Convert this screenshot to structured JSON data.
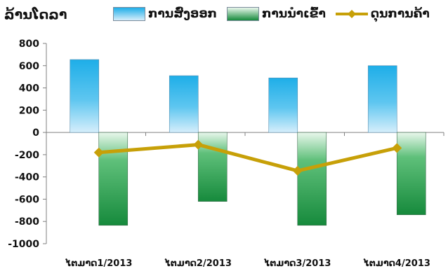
{
  "unit_label": "ລ້ານໂດລາ",
  "legend": [
    {
      "key": "exports",
      "label": "ການສົ່ງອອກ",
      "icon": "bar-swatch-blue"
    },
    {
      "key": "imports",
      "label": "ການນຳເຂົ້າ",
      "icon": "bar-swatch-green"
    },
    {
      "key": "balance",
      "label": "ດຸນການຄ້າ",
      "icon": "line-diamond-swatch-gold"
    }
  ],
  "colors": {
    "exports_top": "#1eaee8",
    "exports_bottom": "#d6eefb",
    "imports_top": "#e9f7ec",
    "imports_bottom": "#168a3c",
    "balance_line": "#c7a008",
    "axis": "#7f7f7f"
  },
  "chart_data": {
    "type": "bar",
    "categories": [
      "ໄຕມາດ1/2013",
      "ໄຕມາດ2/2013",
      "ໄຕມາດ3/2013",
      "ໄຕມາດ4/2013"
    ],
    "series": [
      {
        "name": "ການສົ່ງອອກ",
        "type": "bar",
        "values": [
          655,
          510,
          490,
          600
        ]
      },
      {
        "name": "ການນຳເຂົ້າ",
        "type": "bar",
        "values": [
          -835,
          -620,
          -835,
          -740
        ]
      },
      {
        "name": "ດຸນການຄ້າ",
        "type": "line",
        "values": [
          -180,
          -110,
          -345,
          -140
        ]
      }
    ],
    "ylim": [
      -1000,
      800
    ],
    "yticks": [
      800,
      600,
      400,
      200,
      0,
      -200,
      -400,
      -600,
      -800,
      -1000
    ],
    "ylabel": "ລ້ານໂດລາ",
    "xlabel": "",
    "grid": false,
    "legend_position": "top"
  }
}
